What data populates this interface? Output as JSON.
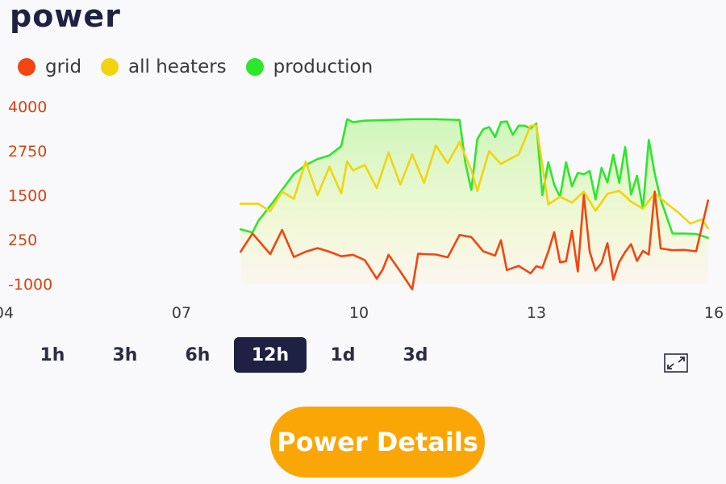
{
  "title": "power",
  "legend": [
    {
      "label": "grid",
      "color": "#f24511"
    },
    {
      "label": "all heaters",
      "color": "#f2d40e"
    },
    {
      "label": "production",
      "color": "#2ce72a"
    }
  ],
  "chart_data": {
    "type": "line",
    "yticks": [
      "4000",
      "2750",
      "1500",
      "250",
      "-1000"
    ],
    "ytick_values": [
      4000,
      2750,
      1500,
      250,
      -1000
    ],
    "xticks": [
      "04",
      "07",
      "10",
      "13",
      "16"
    ],
    "xtick_values": [
      4,
      7,
      10,
      13,
      16
    ],
    "ylim": [
      -1000,
      4000
    ],
    "xlim": [
      4,
      16
    ],
    "fill": "under production",
    "series": [
      {
        "name": "production",
        "color": "#2ce72a",
        "x": [
          8.0,
          8.2,
          8.3,
          8.5,
          8.7,
          8.9,
          9.1,
          9.3,
          9.5,
          9.7,
          9.8,
          9.9,
          10.0,
          10.1,
          10.5,
          10.9,
          11.3,
          11.7,
          11.8,
          11.9,
          12.0,
          12.1,
          12.2,
          12.3,
          12.4,
          12.5,
          12.6,
          12.7,
          12.8,
          12.9,
          13.0,
          13.1,
          13.2,
          13.3,
          13.4,
          13.5,
          13.6,
          13.7,
          13.8,
          13.9,
          14.0,
          14.1,
          14.2,
          14.3,
          14.4,
          14.5,
          14.6,
          14.7,
          14.8,
          14.9,
          15.0,
          15.1,
          15.3,
          15.5,
          15.7,
          15.9
        ],
        "values": [
          540,
          450,
          780,
          1200,
          1650,
          2100,
          2350,
          2520,
          2620,
          2880,
          3640,
          3560,
          3580,
          3600,
          3620,
          3640,
          3640,
          3620,
          2400,
          1650,
          3080,
          3360,
          3420,
          3140,
          3560,
          3580,
          3200,
          3460,
          3460,
          3380,
          3520,
          1500,
          2430,
          1800,
          1450,
          2430,
          1750,
          2130,
          2090,
          2180,
          1380,
          2270,
          1860,
          2640,
          1850,
          2860,
          1520,
          2050,
          1120,
          3060,
          2100,
          1380,
          420,
          420,
          410,
          300
        ]
      },
      {
        "name": "all heaters",
        "color": "#f2d40e",
        "x": [
          8.0,
          8.3,
          8.5,
          8.7,
          8.9,
          9.1,
          9.3,
          9.5,
          9.7,
          9.8,
          9.9,
          10.1,
          10.3,
          10.5,
          10.7,
          10.9,
          11.1,
          11.3,
          11.5,
          11.7,
          11.9,
          12.0,
          12.2,
          12.4,
          12.5,
          12.7,
          12.9,
          13.0,
          13.2,
          13.4,
          13.6,
          13.8,
          14.0,
          14.2,
          14.4,
          14.6,
          14.8,
          15.0,
          15.2,
          15.4,
          15.6,
          15.8,
          15.9
        ],
        "values": [
          1260,
          1260,
          1050,
          1600,
          1400,
          2450,
          1500,
          2300,
          1550,
          2450,
          2200,
          2350,
          1700,
          2700,
          1800,
          2650,
          1850,
          2900,
          2400,
          3000,
          2200,
          1620,
          2740,
          2380,
          2470,
          2650,
          3460,
          3460,
          1240,
          1460,
          1290,
          1600,
          1060,
          1540,
          1620,
          1320,
          1120,
          1560,
          1270,
          1010,
          700,
          820,
          570
        ]
      },
      {
        "name": "grid",
        "color": "#f24511",
        "x": [
          8.0,
          8.2,
          8.3,
          8.5,
          8.7,
          8.9,
          9.1,
          9.3,
          9.5,
          9.7,
          9.9,
          10.1,
          10.3,
          10.4,
          10.5,
          10.7,
          10.9,
          11.0,
          11.1,
          11.3,
          11.5,
          11.7,
          11.9,
          12.1,
          12.3,
          12.4,
          12.5,
          12.7,
          12.9,
          13.0,
          13.1,
          13.2,
          13.3,
          13.4,
          13.5,
          13.6,
          13.7,
          13.8,
          13.9,
          14.0,
          14.1,
          14.2,
          14.3,
          14.4,
          14.5,
          14.6,
          14.7,
          14.8,
          14.9,
          15.0,
          15.1,
          15.3,
          15.5,
          15.7,
          15.9
        ],
        "values": [
          -90,
          420,
          230,
          -160,
          520,
          -240,
          -90,
          10,
          -90,
          -220,
          -180,
          -330,
          -850,
          -600,
          -180,
          -650,
          -1150,
          -150,
          -160,
          -170,
          -250,
          380,
          320,
          -80,
          -200,
          230,
          -610,
          -490,
          -700,
          -500,
          -550,
          -90,
          460,
          -390,
          -360,
          500,
          -650,
          1510,
          -90,
          -620,
          -410,
          150,
          -880,
          -380,
          -100,
          120,
          -350,
          -70,
          -170,
          1600,
          0,
          -50,
          -40,
          -80,
          1350
        ]
      }
    ]
  },
  "ranges": {
    "options": [
      "1h",
      "3h",
      "6h",
      "12h",
      "1d",
      "3d"
    ],
    "selected": "12h"
  },
  "expand_icon": "expand-arrows-icon",
  "details_button": "Power Details"
}
